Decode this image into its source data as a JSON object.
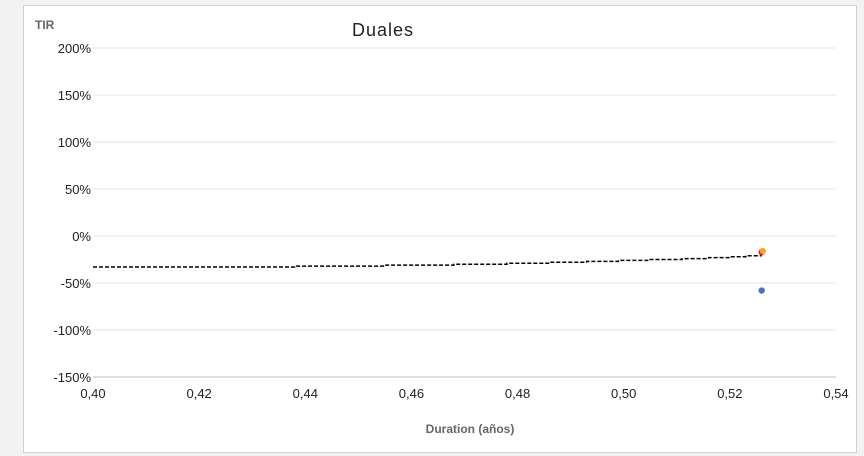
{
  "chart_data": {
    "type": "scatter",
    "title": "Duales",
    "ylabel": "TIR",
    "xlabel": "Duration (años)",
    "xlim": [
      0.4,
      0.54
    ],
    "ylim": [
      -150,
      200
    ],
    "x_ticks": [
      0.4,
      0.42,
      0.44,
      0.46,
      0.48,
      0.5,
      0.52,
      0.54
    ],
    "x_tick_labels": [
      "0,40",
      "0,42",
      "0,44",
      "0,46",
      "0,48",
      "0,50",
      "0,52",
      "0,54"
    ],
    "y_ticks": [
      -150,
      -100,
      -50,
      0,
      50,
      100,
      150,
      200
    ],
    "y_tick_labels": [
      "-150%",
      "-100%",
      "-50%",
      "0%",
      "50%",
      "100%",
      "150%",
      "200%"
    ],
    "grid": true,
    "series": [
      {
        "type": "scatter",
        "color": "#ff0000",
        "points": [
          [
            0.526,
            -17
          ]
        ]
      },
      {
        "type": "scatter",
        "color": "#f5a623",
        "points": [
          [
            0.5262,
            -16
          ]
        ]
      },
      {
        "type": "scatter",
        "color": "#4472c4",
        "points": [
          [
            0.526,
            -58
          ]
        ]
      },
      {
        "type": "line",
        "style": "dashed",
        "color": "#000000",
        "points": [
          [
            0.4,
            -33
          ],
          [
            0.438,
            -33
          ],
          [
            0.438,
            -32
          ],
          [
            0.455,
            -32
          ],
          [
            0.455,
            -31
          ],
          [
            0.468,
            -31
          ],
          [
            0.468,
            -30
          ],
          [
            0.478,
            -30
          ],
          [
            0.478,
            -29
          ],
          [
            0.486,
            -29
          ],
          [
            0.486,
            -28
          ],
          [
            0.493,
            -28
          ],
          [
            0.493,
            -27
          ],
          [
            0.499,
            -27
          ],
          [
            0.499,
            -26
          ],
          [
            0.505,
            -26
          ],
          [
            0.505,
            -25
          ],
          [
            0.511,
            -25
          ],
          [
            0.511,
            -24
          ],
          [
            0.516,
            -24
          ],
          [
            0.516,
            -23
          ],
          [
            0.52,
            -23
          ],
          [
            0.52,
            -22
          ],
          [
            0.523,
            -22
          ],
          [
            0.523,
            -21
          ],
          [
            0.526,
            -21
          ]
        ]
      }
    ]
  }
}
